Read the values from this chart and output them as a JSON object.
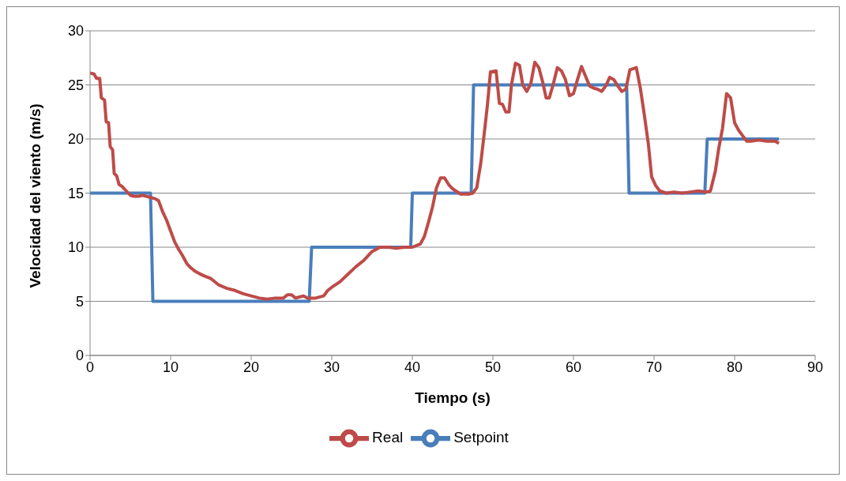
{
  "chart_data": {
    "type": "line",
    "xlabel": "Tiempo (s)",
    "ylabel": "Velocidad del viento (m/s)",
    "xlim": [
      0,
      90
    ],
    "xticks": [
      0,
      10,
      20,
      30,
      40,
      50,
      60,
      70,
      80,
      90
    ],
    "ylim": [
      0,
      30
    ],
    "yticks": [
      0,
      5,
      10,
      15,
      20,
      25,
      30
    ],
    "grid": "y",
    "legend": "bottom",
    "marker": "none",
    "line_style": "solid",
    "series": [
      {
        "name": "Setpoint",
        "color": "#4a7ebb",
        "x": [
          0,
          7.5,
          7.8,
          27.2,
          27.5,
          39.8,
          40,
          47.3,
          47.6,
          66.6,
          66.9,
          76.3,
          76.6,
          85.5
        ],
        "values": [
          15,
          15,
          5,
          5,
          10,
          10,
          15,
          15,
          25,
          25,
          15,
          15,
          20,
          20
        ]
      },
      {
        "name": "Real",
        "color": "#be4b48",
        "x": [
          0,
          0.5,
          0.8,
          1.2,
          1.4,
          1.8,
          2,
          2.3,
          2.5,
          2.8,
          3,
          3.3,
          3.6,
          4,
          4.5,
          5,
          5.5,
          6,
          6.5,
          7,
          7.5,
          8,
          8.5,
          9,
          9.5,
          10,
          10.5,
          11,
          11.5,
          12,
          12.5,
          13,
          14,
          15,
          16,
          17,
          18,
          19,
          20,
          21,
          22,
          23,
          24,
          24.5,
          25,
          25.5,
          26,
          26.5,
          27,
          28,
          29,
          29.5,
          30,
          31,
          32,
          33,
          34,
          35,
          36,
          37,
          38,
          39,
          40,
          41,
          41.5,
          42,
          42.5,
          43,
          43.5,
          44,
          44.5,
          45,
          46,
          47,
          47.5,
          48,
          48.5,
          49,
          49.3,
          49.7,
          50.4,
          50.8,
          51.2,
          51.6,
          52,
          52.3,
          52.8,
          53.3,
          53.7,
          54.2,
          54.7,
          55.2,
          55.7,
          56.2,
          56.6,
          57,
          57.5,
          58,
          58.5,
          59,
          59.5,
          60,
          60.5,
          61,
          61.5,
          62,
          62.5,
          63,
          63.5,
          64,
          64.5,
          65,
          65.5,
          66,
          66.5,
          67,
          67.8,
          68.3,
          68.8,
          69.3,
          69.7,
          70.2,
          70.7,
          71.5,
          72.5,
          73.5,
          74.5,
          75.5,
          76.5,
          77,
          77.6,
          78,
          78.5,
          79,
          79.5,
          80,
          80.5,
          81,
          81.5,
          82,
          83,
          84,
          85,
          85.5
        ],
        "values": [
          26.1,
          26,
          25.6,
          25.6,
          23.8,
          23.6,
          21.6,
          21.5,
          19.3,
          19,
          16.8,
          16.6,
          15.8,
          15.6,
          15.2,
          14.8,
          14.7,
          14.7,
          14.8,
          14.7,
          14.6,
          14.5,
          14.3,
          13.3,
          12.5,
          11.5,
          10.5,
          9.8,
          9.2,
          8.5,
          8.1,
          7.8,
          7.4,
          7.1,
          6.5,
          6.2,
          6,
          5.7,
          5.5,
          5.3,
          5.2,
          5.3,
          5.3,
          5.6,
          5.6,
          5.3,
          5.4,
          5.5,
          5.3,
          5.3,
          5.5,
          6,
          6.3,
          6.8,
          7.5,
          8.2,
          8.8,
          9.6,
          10,
          10,
          9.9,
          10,
          10,
          10.3,
          11,
          12.3,
          13.7,
          15.5,
          16.4,
          16.4,
          15.8,
          15.4,
          14.9,
          14.9,
          15,
          15.5,
          17.8,
          21,
          23,
          26.2,
          26.3,
          23.3,
          23.2,
          22.5,
          22.5,
          25,
          27,
          26.8,
          25,
          24.4,
          25.1,
          27.1,
          26.6,
          25.2,
          23.8,
          23.8,
          25.1,
          26.6,
          26.3,
          25.5,
          24,
          24.2,
          25.5,
          26.7,
          25.8,
          24.9,
          24.7,
          24.6,
          24.4,
          24.9,
          25.7,
          25.5,
          24.9,
          24.4,
          24.6,
          26.4,
          26.6,
          24.7,
          22.2,
          19.5,
          16.5,
          15.7,
          15.2,
          15,
          15.1,
          15,
          15.1,
          15.2,
          15.1,
          15.2,
          17,
          19,
          21,
          24.2,
          23.8,
          21.5,
          20.8,
          20.3,
          19.8,
          19.8,
          19.9,
          19.8,
          19.8,
          19.6
        ]
      }
    ]
  }
}
